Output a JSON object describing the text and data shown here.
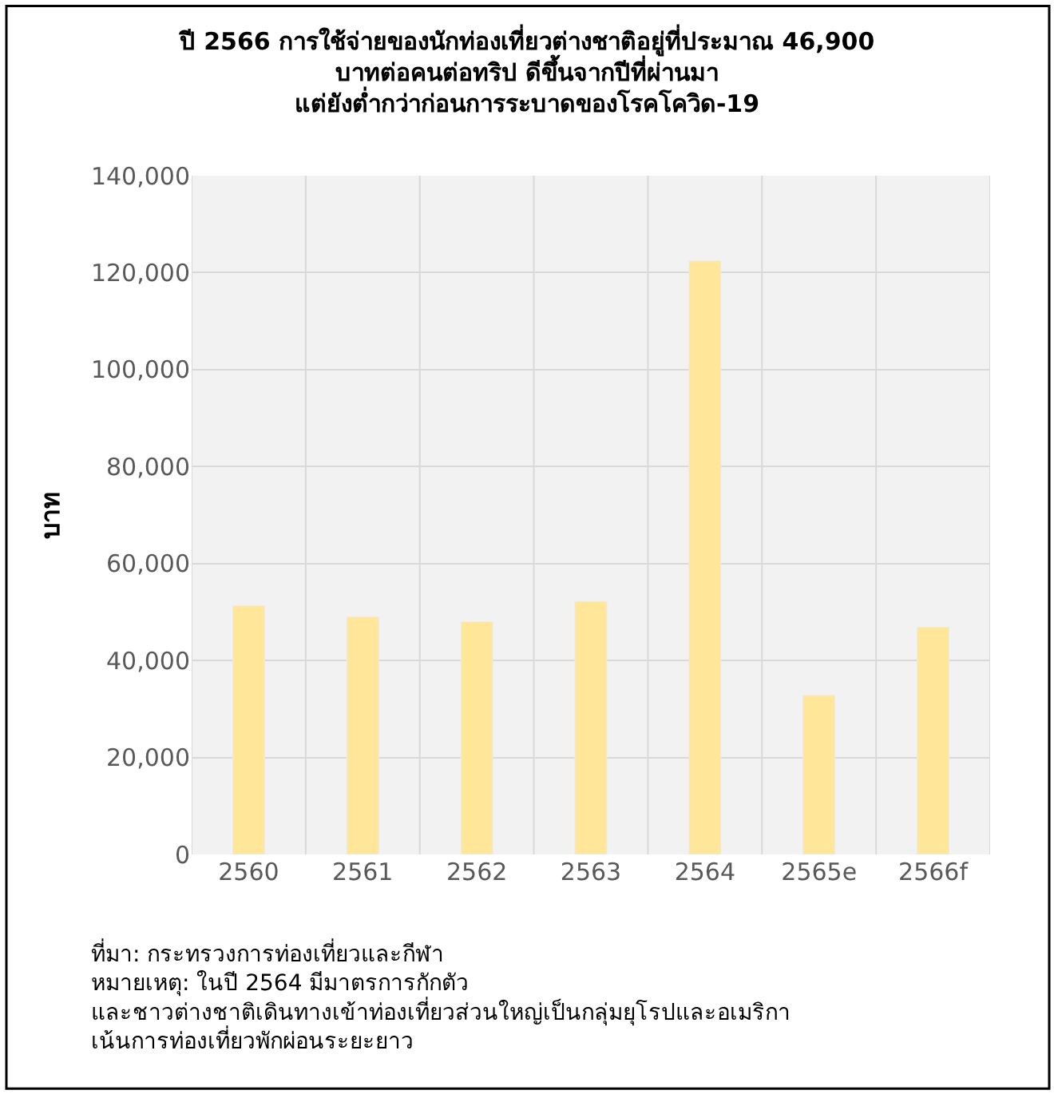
{
  "chart_data": {
    "type": "bar",
    "title": "ปี 2566 การใช้จ่ายของนักท่องเที่ยวต่างชาติอยู่ที่ประมาณ 46,900 บาทต่อคนต่อทริป ดีขึ้นจากปีที่ผ่านมา แต่ยังต่ำกว่าก่อนการระบาดของโรคโควิด-19",
    "ylabel": "บาท",
    "categories": [
      "2560",
      "2561",
      "2562",
      "2563",
      "2564",
      "2565e",
      "2566f"
    ],
    "values": [
      51300,
      49000,
      48000,
      52200,
      122400,
      32800,
      46900
    ],
    "color": "#ffe699",
    "ylim": [
      0,
      140000
    ],
    "yticks": [
      {
        "value": 0,
        "label": "0"
      },
      {
        "value": 20000,
        "label": "20,000"
      },
      {
        "value": 40000,
        "label": "40,000"
      },
      {
        "value": 60000,
        "label": "60,000"
      },
      {
        "value": 80000,
        "label": "80,000"
      },
      {
        "value": 100000,
        "label": "100,000"
      },
      {
        "value": 120000,
        "label": "120,000"
      },
      {
        "value": 140000,
        "label": "140,000"
      }
    ],
    "grid": true,
    "annotations": [
      "ที่มา: กระทรวงการท่องเที่ยวและกีฬา",
      "หมายเหตุ: ในปี 2564 มีมาตรการกักตัว และชาวต่างชาติเดินทางเข้าท่องเที่ยวส่วนใหญ่เป็นกลุ่มยุโรปและอเมริกา เน้นการท่องเที่ยวพักผ่อนระยะยาว"
    ]
  }
}
